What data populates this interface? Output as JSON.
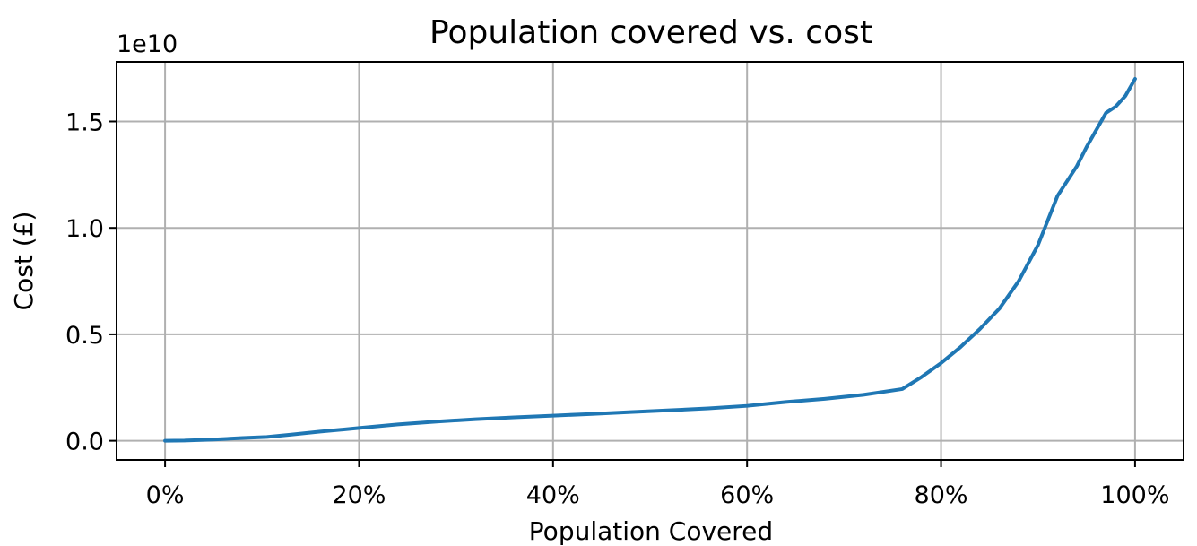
{
  "chart_data": {
    "type": "line",
    "title": "Population covered vs. cost",
    "xlabel": "Population Covered",
    "ylabel": "Cost (£)",
    "y_offset_label": "1e10",
    "x_ticks": [
      0,
      20,
      40,
      60,
      80,
      100
    ],
    "x_tick_labels": [
      "0%",
      "20%",
      "40%",
      "60%",
      "80%",
      "100%"
    ],
    "y_ticks": [
      0.0,
      0.5,
      1.0,
      1.5
    ],
    "y_tick_labels": [
      "0.0",
      "0.5",
      "1.0",
      "1.5"
    ],
    "xlim": [
      -5,
      105
    ],
    "ylim": [
      -0.09,
      1.78
    ],
    "y_units": "1e10 £",
    "grid": true,
    "series": [
      {
        "color": "#1f77b4",
        "x": [
          0,
          2,
          5,
          8,
          10.5,
          13,
          16,
          20,
          24,
          28,
          32,
          36,
          40,
          44,
          48,
          52,
          56,
          60,
          64,
          68,
          72,
          76,
          78,
          80,
          82,
          84,
          86,
          88,
          90,
          92,
          94,
          95,
          96,
          97,
          98,
          99,
          100
        ],
        "y": [
          0.0,
          0.001,
          0.006,
          0.013,
          0.018,
          0.029,
          0.043,
          0.06,
          0.077,
          0.09,
          0.101,
          0.11,
          0.118,
          0.126,
          0.135,
          0.143,
          0.152,
          0.164,
          0.182,
          0.197,
          0.216,
          0.243,
          0.3,
          0.365,
          0.44,
          0.525,
          0.62,
          0.75,
          0.92,
          1.15,
          1.29,
          1.38,
          1.46,
          1.54,
          1.57,
          1.62,
          1.7
        ]
      }
    ]
  }
}
